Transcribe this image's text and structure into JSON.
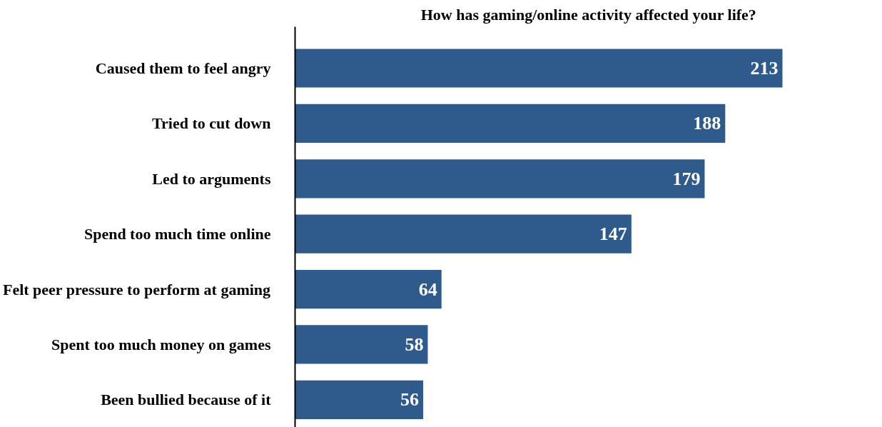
{
  "chart_data": {
    "type": "bar",
    "orientation": "horizontal",
    "title": "How has gaming/online activity affected your life?",
    "categories": [
      "Caused them to feel angry",
      "Tried to cut down",
      "Led to arguments",
      "Spend too much time online",
      "Felt peer pressure to perform at gaming",
      "Spent too much money on games",
      "Been bullied because of it"
    ],
    "values": [
      213,
      188,
      179,
      147,
      64,
      58,
      56
    ],
    "color": "#2e5a8c",
    "data_labels": true,
    "grid": false,
    "tick_labels": "y"
  }
}
